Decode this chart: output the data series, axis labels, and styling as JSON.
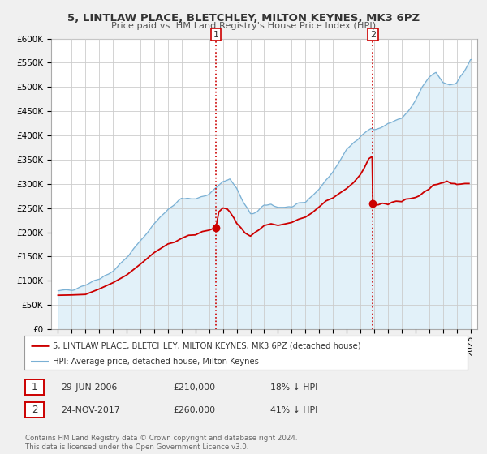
{
  "title": "5, LINTLAW PLACE, BLETCHLEY, MILTON KEYNES, MK3 6PZ",
  "subtitle": "Price paid vs. HM Land Registry's House Price Index (HPI)",
  "bg_color": "#f0f0f0",
  "plot_bg_color": "#ffffff",
  "grid_color": "#cccccc",
  "hpi_color": "#7ab0d4",
  "hpi_fill_color": "#d0e8f5",
  "price_color": "#cc0000",
  "sale1_date": 2006.49,
  "sale1_price": 210000,
  "sale2_date": 2017.9,
  "sale2_price": 260000,
  "ylim": [
    0,
    600000
  ],
  "yticks": [
    0,
    50000,
    100000,
    150000,
    200000,
    250000,
    300000,
    350000,
    400000,
    450000,
    500000,
    550000,
    600000
  ],
  "ytick_labels": [
    "£0",
    "£50K",
    "£100K",
    "£150K",
    "£200K",
    "£250K",
    "£300K",
    "£350K",
    "£400K",
    "£450K",
    "£500K",
    "£550K",
    "£600K"
  ],
  "xlim_start": 1994.5,
  "xlim_end": 2025.5,
  "xticks": [
    1995,
    1996,
    1997,
    1998,
    1999,
    2000,
    2001,
    2002,
    2003,
    2004,
    2005,
    2006,
    2007,
    2008,
    2009,
    2010,
    2011,
    2012,
    2013,
    2014,
    2015,
    2016,
    2017,
    2018,
    2019,
    2020,
    2021,
    2022,
    2023,
    2024,
    2025
  ],
  "legend_label_price": "5, LINTLAW PLACE, BLETCHLEY, MILTON KEYNES, MK3 6PZ (detached house)",
  "legend_label_hpi": "HPI: Average price, detached house, Milton Keynes",
  "annotation1_label": "1",
  "annotation1_date_str": "29-JUN-2006",
  "annotation1_price_str": "£210,000",
  "annotation1_pct": "18% ↓ HPI",
  "annotation2_label": "2",
  "annotation2_date_str": "24-NOV-2017",
  "annotation2_price_str": "£260,000",
  "annotation2_pct": "41% ↓ HPI",
  "footnote": "Contains HM Land Registry data © Crown copyright and database right 2024.\nThis data is licensed under the Open Government Licence v3.0."
}
